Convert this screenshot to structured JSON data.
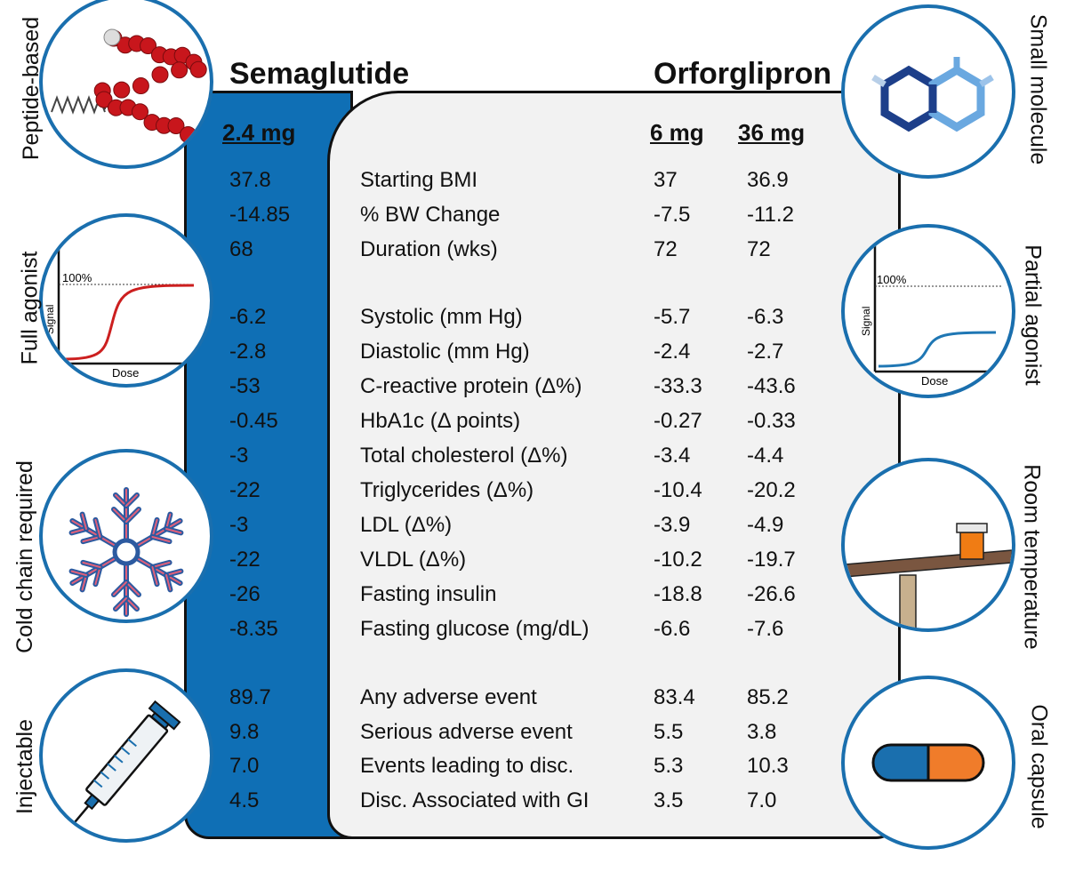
{
  "semaglutide": {
    "name": "Semaglutide",
    "dose": "2.4 mg",
    "values": [
      "37.8",
      "-14.85",
      "68",
      "-6.2",
      "-2.8",
      "-53",
      "-0.45",
      "-3",
      "-22",
      "-3",
      "-22",
      "-26",
      "-8.35",
      "89.7",
      "9.8",
      "7.0",
      "4.5"
    ]
  },
  "orforglipron": {
    "name": "Orforglipron",
    "doses": [
      "6 mg",
      "36 mg"
    ],
    "values_6mg": [
      "37",
      "-7.5",
      "72",
      "-5.7",
      "-2.4",
      "-33.3",
      "-0.27",
      "-3.4",
      "-10.4",
      "-3.9",
      "-10.2",
      "-18.8",
      "-6.6",
      "83.4",
      "5.5",
      "5.3",
      "3.5"
    ],
    "values_36mg": [
      "36.9",
      "-11.2",
      "72",
      "-6.3",
      "-2.7",
      "-43.6",
      "-0.33",
      "-4.4",
      "-20.2",
      "-4.9",
      "-19.7",
      "-26.6",
      "-7.6",
      "85.2",
      "3.8",
      "10.3",
      "7.0"
    ]
  },
  "metrics": [
    "Starting BMI",
    "% BW Change",
    "Duration (wks)",
    "Systolic (mm Hg)",
    "Diastolic (mm Hg)",
    "C-reactive protein (Δ%)",
    "HbA1c (Δ points)",
    "Total cholesterol (Δ%)",
    "Triglycerides (Δ%)",
    "LDL (Δ%)",
    "VLDL (Δ%)",
    "Fasting insulin",
    "Fasting glucose (mg/dL)",
    "Any adverse event",
    "Serious adverse event",
    "Events leading to disc.",
    "Disc. Associated with GI"
  ],
  "left_labels": [
    "Peptide-based",
    "Full agonist",
    "Cold chain required",
    "Injectable"
  ],
  "right_labels": [
    "Small molecule",
    "Partial agonist",
    "Room temperature",
    "Oral capsule"
  ],
  "graph": {
    "ceiling": "100%",
    "ylabel": "Signal",
    "xlabel": "Dose"
  },
  "colors": {
    "blue_panel": "#0f6fb5",
    "grey_panel": "#f2f2f2",
    "circle_border": "#1a6fae",
    "full_curve": "#cc1f1f",
    "partial_curve": "#1f77b4"
  },
  "icons": [
    "peptide-chain-icon",
    "dose-response-full-icon",
    "snowflake-icon",
    "syringe-icon",
    "hexagon-molecule-icon",
    "dose-response-partial-icon",
    "pill-bottle-on-table-icon",
    "capsule-icon"
  ]
}
